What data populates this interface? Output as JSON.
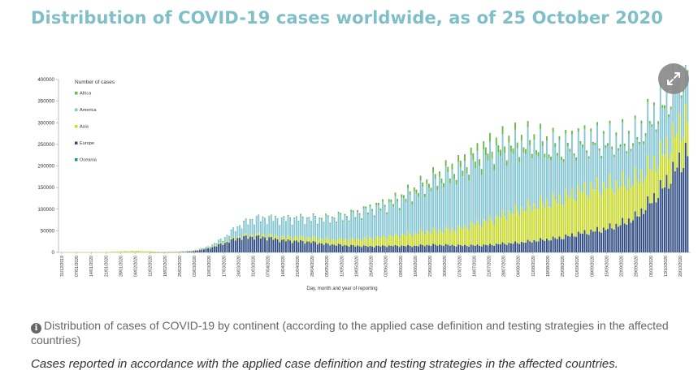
{
  "page": {
    "title": "Distribution of COVID-19 cases worldwide, as of 25 October 2020",
    "caption": "Distribution of cases of COVID-19 by continent (according to the applied case definition and testing strategies in the affected countries)",
    "note": "Cases reported in accordance with the applied case definition and testing strategies in the affected countries."
  },
  "icons": {
    "expand": "expand-icon",
    "info": "info-icon"
  },
  "colors": {
    "Africa": "#6cb83a",
    "America": "#86c6d3",
    "Asia": "#c8d92c",
    "Europe": "#2e4b82",
    "Oceania": "#1a8f8f",
    "title": "#7fbfc7"
  },
  "chart_data": {
    "type": "bar",
    "stacked": true,
    "title": "",
    "legend_title": "Number of cases",
    "legend_position": "top-left",
    "xlabel": "Day, month and year of reporting",
    "ylabel": "",
    "ylim": [
      0,
      400000
    ],
    "yticks": [
      0,
      50000,
      100000,
      150000,
      200000,
      250000,
      300000,
      350000,
      400000
    ],
    "ytick_labels": [
      "0",
      "50000",
      "100000",
      "150000",
      "200000",
      "250000",
      "300000",
      "350000",
      "400000"
    ],
    "xtick_labels": [
      "31/12/2019",
      "07/01/2020",
      "14/01/2020",
      "21/01/2020",
      "28/01/2020",
      "04/02/2020",
      "11/02/2020",
      "18/02/2020",
      "25/02/2020",
      "03/03/2020",
      "10/03/2020",
      "17/03/2020",
      "24/03/2020",
      "31/03/2020",
      "07/04/2020",
      "14/04/2020",
      "21/04/2020",
      "28/04/2020",
      "05/05/2020",
      "12/05/2020",
      "19/05/2020",
      "26/05/2020",
      "02/06/2020",
      "09/06/2020",
      "16/06/2020",
      "23/06/2020",
      "30/06/2020",
      "07/07/2020",
      "14/07/2020",
      "21/07/2020",
      "28/07/2020",
      "04/08/2020",
      "11/08/2020",
      "18/08/2020",
      "25/08/2020",
      "01/09/2020",
      "08/09/2020",
      "15/09/2020",
      "22/09/2020",
      "29/09/2020",
      "06/10/2020",
      "13/10/2020",
      "20/10/2020"
    ],
    "weekly_points": [
      {
        "Europe": 0,
        "Asia": 200,
        "America": 0,
        "Africa": 0,
        "Oceania": 0
      },
      {
        "Europe": 0,
        "Asia": 300,
        "America": 0,
        "Africa": 0,
        "Oceania": 0
      },
      {
        "Europe": 0,
        "Asia": 500,
        "America": 0,
        "Africa": 0,
        "Oceania": 0
      },
      {
        "Europe": 0,
        "Asia": 1000,
        "America": 0,
        "Africa": 0,
        "Oceania": 0
      },
      {
        "Europe": 0,
        "Asia": 2500,
        "America": 0,
        "Africa": 0,
        "Oceania": 0
      },
      {
        "Europe": 0,
        "Asia": 3500,
        "America": 0,
        "Africa": 0,
        "Oceania": 0
      },
      {
        "Europe": 0,
        "Asia": 2500,
        "America": 0,
        "Africa": 0,
        "Oceania": 0
      },
      {
        "Europe": 100,
        "Asia": 1000,
        "America": 0,
        "Africa": 0,
        "Oceania": 0
      },
      {
        "Europe": 500,
        "Asia": 1200,
        "America": 100,
        "Africa": 0,
        "Oceania": 0
      },
      {
        "Europe": 2500,
        "Asia": 1500,
        "America": 500,
        "Africa": 0,
        "Oceania": 0
      },
      {
        "Europe": 9000,
        "Asia": 1500,
        "America": 2000,
        "Africa": 0,
        "Oceania": 100
      },
      {
        "Europe": 20000,
        "Asia": 2500,
        "America": 8000,
        "Africa": 300,
        "Oceania": 300
      },
      {
        "Europe": 33000,
        "Asia": 3500,
        "America": 22000,
        "Africa": 600,
        "Oceania": 300
      },
      {
        "Europe": 36000,
        "Asia": 4500,
        "America": 35000,
        "Africa": 900,
        "Oceania": 200
      },
      {
        "Europe": 34000,
        "Asia": 6000,
        "America": 38000,
        "Africa": 1000,
        "Oceania": 100
      },
      {
        "Europe": 28000,
        "Asia": 7500,
        "America": 40000,
        "Africa": 1200,
        "Oceania": 100
      },
      {
        "Europe": 26000,
        "Asia": 9000,
        "America": 42000,
        "Africa": 1400,
        "Oceania": 50
      },
      {
        "Europe": 24000,
        "Asia": 10000,
        "America": 43000,
        "Africa": 1800,
        "Oceania": 50
      },
      {
        "Europe": 19000,
        "Asia": 11000,
        "America": 46000,
        "Africa": 2200,
        "Oceania": 50
      },
      {
        "Europe": 17000,
        "Asia": 13000,
        "America": 50000,
        "Africa": 2800,
        "Oceania": 50
      },
      {
        "Europe": 15000,
        "Asia": 15000,
        "America": 56000,
        "Africa": 3300,
        "Oceania": 50
      },
      {
        "Europe": 14000,
        "Asia": 18000,
        "America": 65000,
        "Africa": 4000,
        "Oceania": 50
      },
      {
        "Europe": 15000,
        "Asia": 21000,
        "America": 70000,
        "Africa": 5000,
        "Oceania": 50
      },
      {
        "Europe": 15000,
        "Asia": 25000,
        "America": 78000,
        "Africa": 6500,
        "Oceania": 100
      },
      {
        "Europe": 15000,
        "Asia": 28000,
        "America": 92000,
        "Africa": 8000,
        "Oceania": 100
      },
      {
        "Europe": 17000,
        "Asia": 32000,
        "America": 105000,
        "Africa": 9500,
        "Oceania": 100
      },
      {
        "Europe": 17000,
        "Asia": 34000,
        "America": 120000,
        "Africa": 11000,
        "Oceania": 200
      },
      {
        "Europe": 16000,
        "Asia": 38000,
        "America": 130000,
        "Africa": 13000,
        "Oceania": 300
      },
      {
        "Europe": 16000,
        "Asia": 48000,
        "America": 140000,
        "Africa": 15000,
        "Oceania": 400
      },
      {
        "Europe": 17000,
        "Asia": 55000,
        "America": 150000,
        "Africa": 17000,
        "Oceania": 500
      },
      {
        "Europe": 20000,
        "Asia": 65000,
        "America": 150000,
        "Africa": 15000,
        "Oceania": 600
      },
      {
        "Europe": 22000,
        "Asia": 75000,
        "America": 145000,
        "Africa": 13000,
        "Oceania": 500
      },
      {
        "Europe": 26000,
        "Asia": 80000,
        "America": 140000,
        "Africa": 11000,
        "Oceania": 400
      },
      {
        "Europe": 30000,
        "Asia": 85000,
        "America": 125000,
        "Africa": 9000,
        "Oceania": 300
      },
      {
        "Europe": 34000,
        "Asia": 88000,
        "America": 115000,
        "Africa": 7500,
        "Oceania": 200
      },
      {
        "Europe": 42000,
        "Asia": 95000,
        "America": 110000,
        "Africa": 7000,
        "Oceania": 200
      },
      {
        "Europe": 48000,
        "Asia": 100000,
        "America": 105000,
        "Africa": 6500,
        "Oceania": 100
      },
      {
        "Europe": 54000,
        "Asia": 98000,
        "America": 100000,
        "Africa": 6000,
        "Oceania": 100
      },
      {
        "Europe": 65000,
        "Asia": 92000,
        "America": 95000,
        "Africa": 6000,
        "Oceania": 100
      },
      {
        "Europe": 80000,
        "Asia": 85000,
        "America": 95000,
        "Africa": 6000,
        "Oceania": 100
      },
      {
        "Europe": 115000,
        "Asia": 80000,
        "America": 105000,
        "Africa": 6500,
        "Oceania": 100
      },
      {
        "Europe": 155000,
        "Asia": 78000,
        "America": 110000,
        "Africa": 7000,
        "Oceania": 100
      },
      {
        "Europe": 205000,
        "Asia": 80000,
        "America": 115000,
        "Africa": 7000,
        "Oceania": 100
      }
    ],
    "series": [
      {
        "name": "Africa"
      },
      {
        "name": "America"
      },
      {
        "name": "Asia"
      },
      {
        "name": "Europe"
      },
      {
        "name": "Oceania"
      }
    ]
  }
}
